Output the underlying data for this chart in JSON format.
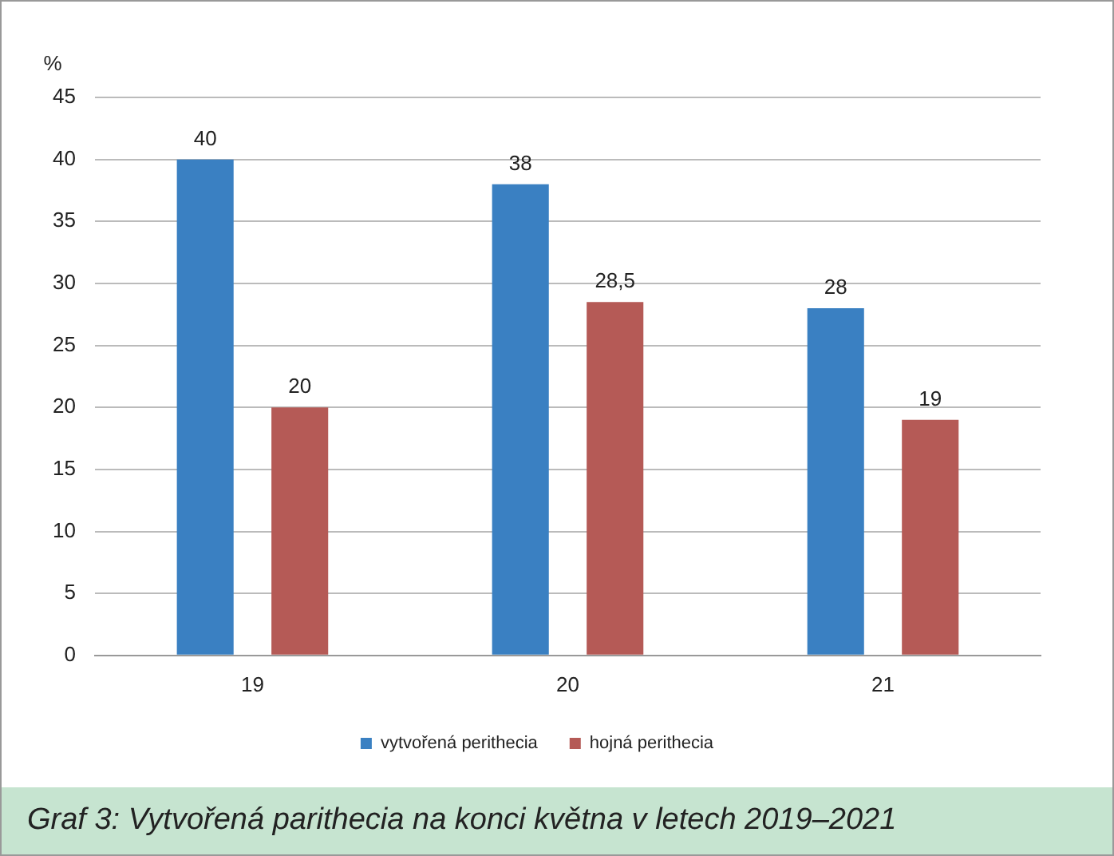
{
  "chart_data": {
    "type": "bar",
    "ylabel": "%",
    "categories": [
      "19",
      "20",
      "21"
    ],
    "series": [
      {
        "name": "vytvořená perithecia",
        "color": "#3a80c2",
        "values": [
          40,
          38,
          28
        ],
        "value_labels": [
          "40",
          "38",
          "28"
        ]
      },
      {
        "name": "hojná perithecia",
        "color": "#b55a56",
        "values": [
          20,
          28.5,
          19
        ],
        "value_labels": [
          "20",
          "28,5",
          "19"
        ]
      }
    ],
    "ylim": [
      0,
      45
    ],
    "yticks": [
      0,
      5,
      10,
      15,
      20,
      25,
      30,
      35,
      40,
      45
    ],
    "grid": "y",
    "legend": "bottom",
    "annotations": [
      "Graf 3: Vytvořená parithecia na konci května v letech 2019–2021"
    ]
  }
}
